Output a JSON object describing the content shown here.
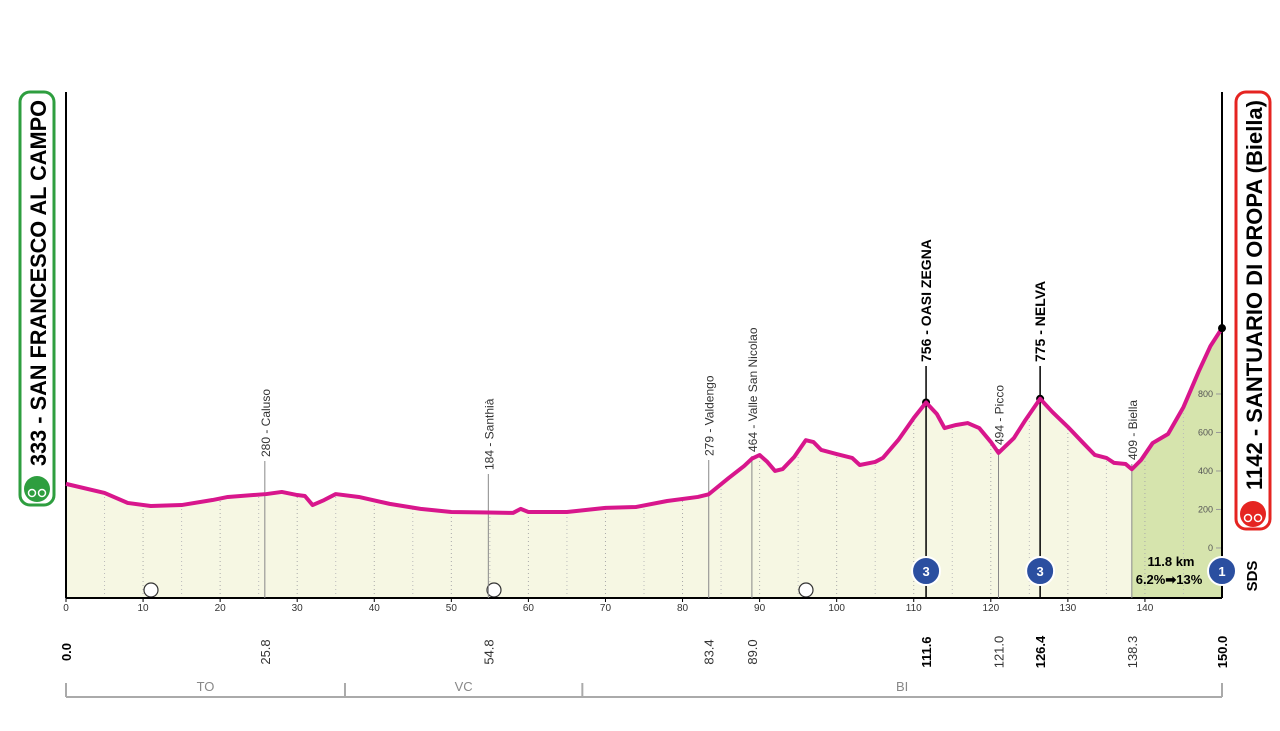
{
  "chart_data": {
    "type": "area",
    "start": {
      "name": "333 - SAN FRANCESCO AL CAMPO"
    },
    "finish": {
      "name": "1142 - SANTUARIO DI OROPA (Biella)"
    },
    "x": [
      0,
      5,
      8,
      11,
      15,
      19,
      21,
      26,
      28,
      30,
      31,
      32,
      33.5,
      35,
      38,
      42,
      46,
      50,
      54.8,
      58,
      59,
      60,
      65,
      70,
      74,
      78,
      82,
      83.4,
      86,
      88,
      89,
      90,
      91,
      92,
      93,
      94.5,
      96,
      97,
      98,
      100,
      102,
      103,
      105,
      106,
      108,
      110,
      111.6,
      113,
      114,
      115.5,
      117,
      118.5,
      120,
      121,
      123,
      124.5,
      126.4,
      128,
      130,
      132,
      133.5,
      135,
      136,
      137.5,
      138.3,
      139.5,
      141,
      143,
      145,
      147,
      148.5,
      150
    ],
    "values": [
      333,
      286,
      234,
      218,
      223,
      249,
      265,
      280,
      291,
      275,
      270,
      223,
      249,
      280,
      265,
      229,
      203,
      187,
      184,
      182,
      203,
      187,
      187,
      208,
      213,
      244,
      265,
      279,
      364,
      426,
      464,
      483,
      447,
      400,
      410,
      473,
      560,
      550,
      509,
      488,
      468,
      431,
      447,
      468,
      561,
      675,
      756,
      696,
      623,
      639,
      649,
      623,
      551,
      494,
      571,
      665,
      775,
      706,
      629,
      545,
      483,
      468,
      442,
      436,
      409,
      457,
      545,
      592,
      732,
      919,
      1049,
      1142
    ],
    "color": "#d8168c",
    "fill": "#f6f7e3",
    "final_climb_fill": "#d6e4ad",
    "xlim": [
      0,
      150
    ],
    "ylim": [
      -260,
      2369
    ],
    "xticks": [
      0,
      10,
      20,
      30,
      40,
      50,
      60,
      70,
      80,
      90,
      100,
      110,
      120,
      130,
      140
    ],
    "yticks": [
      0,
      200,
      400,
      600,
      800
    ],
    "places": [
      {
        "km": {
          "value": 0,
          "label": "0.0"
        }
      },
      {
        "km": {
          "value": 25.8,
          "label": "25.8"
        },
        "name": "280 - Caluso"
      },
      {
        "km": {
          "value": 54.8,
          "label": "54.8"
        },
        "name": "184 - Santhià"
      },
      {
        "km": {
          "value": 83.4,
          "label": "83.4"
        },
        "name": "279 - Valdengo"
      },
      {
        "km": {
          "value": 89.0,
          "label": "89.0"
        },
        "name": "464 - Valle San Nicolao"
      },
      {
        "km": {
          "value": 111.6,
          "label": "111.6"
        },
        "name": "756 - OASI ZEGNA",
        "climb_category": "3"
      },
      {
        "km": {
          "value": 121.0,
          "label": "121.0"
        },
        "name": "494 - Picco"
      },
      {
        "km": {
          "value": 126.4,
          "label": "126.4"
        },
        "name": "775 - NELVA",
        "climb_category": "3"
      },
      {
        "km": {
          "value": 138.3,
          "label": "138.3"
        },
        "name": "409 - Biella"
      },
      {
        "km": {
          "value": 150.0,
          "label": "150.0"
        }
      }
    ],
    "final_climb": {
      "from": 138.3,
      "category": "1",
      "length": "11.8 km",
      "gradient": "6.2%➡13%"
    },
    "regions": [
      {
        "name": "TO",
        "to": 36.2
      },
      {
        "name": "VC",
        "to": 67
      },
      {
        "name": "BI",
        "to": 150
      }
    ],
    "sponsor": "SDS"
  }
}
